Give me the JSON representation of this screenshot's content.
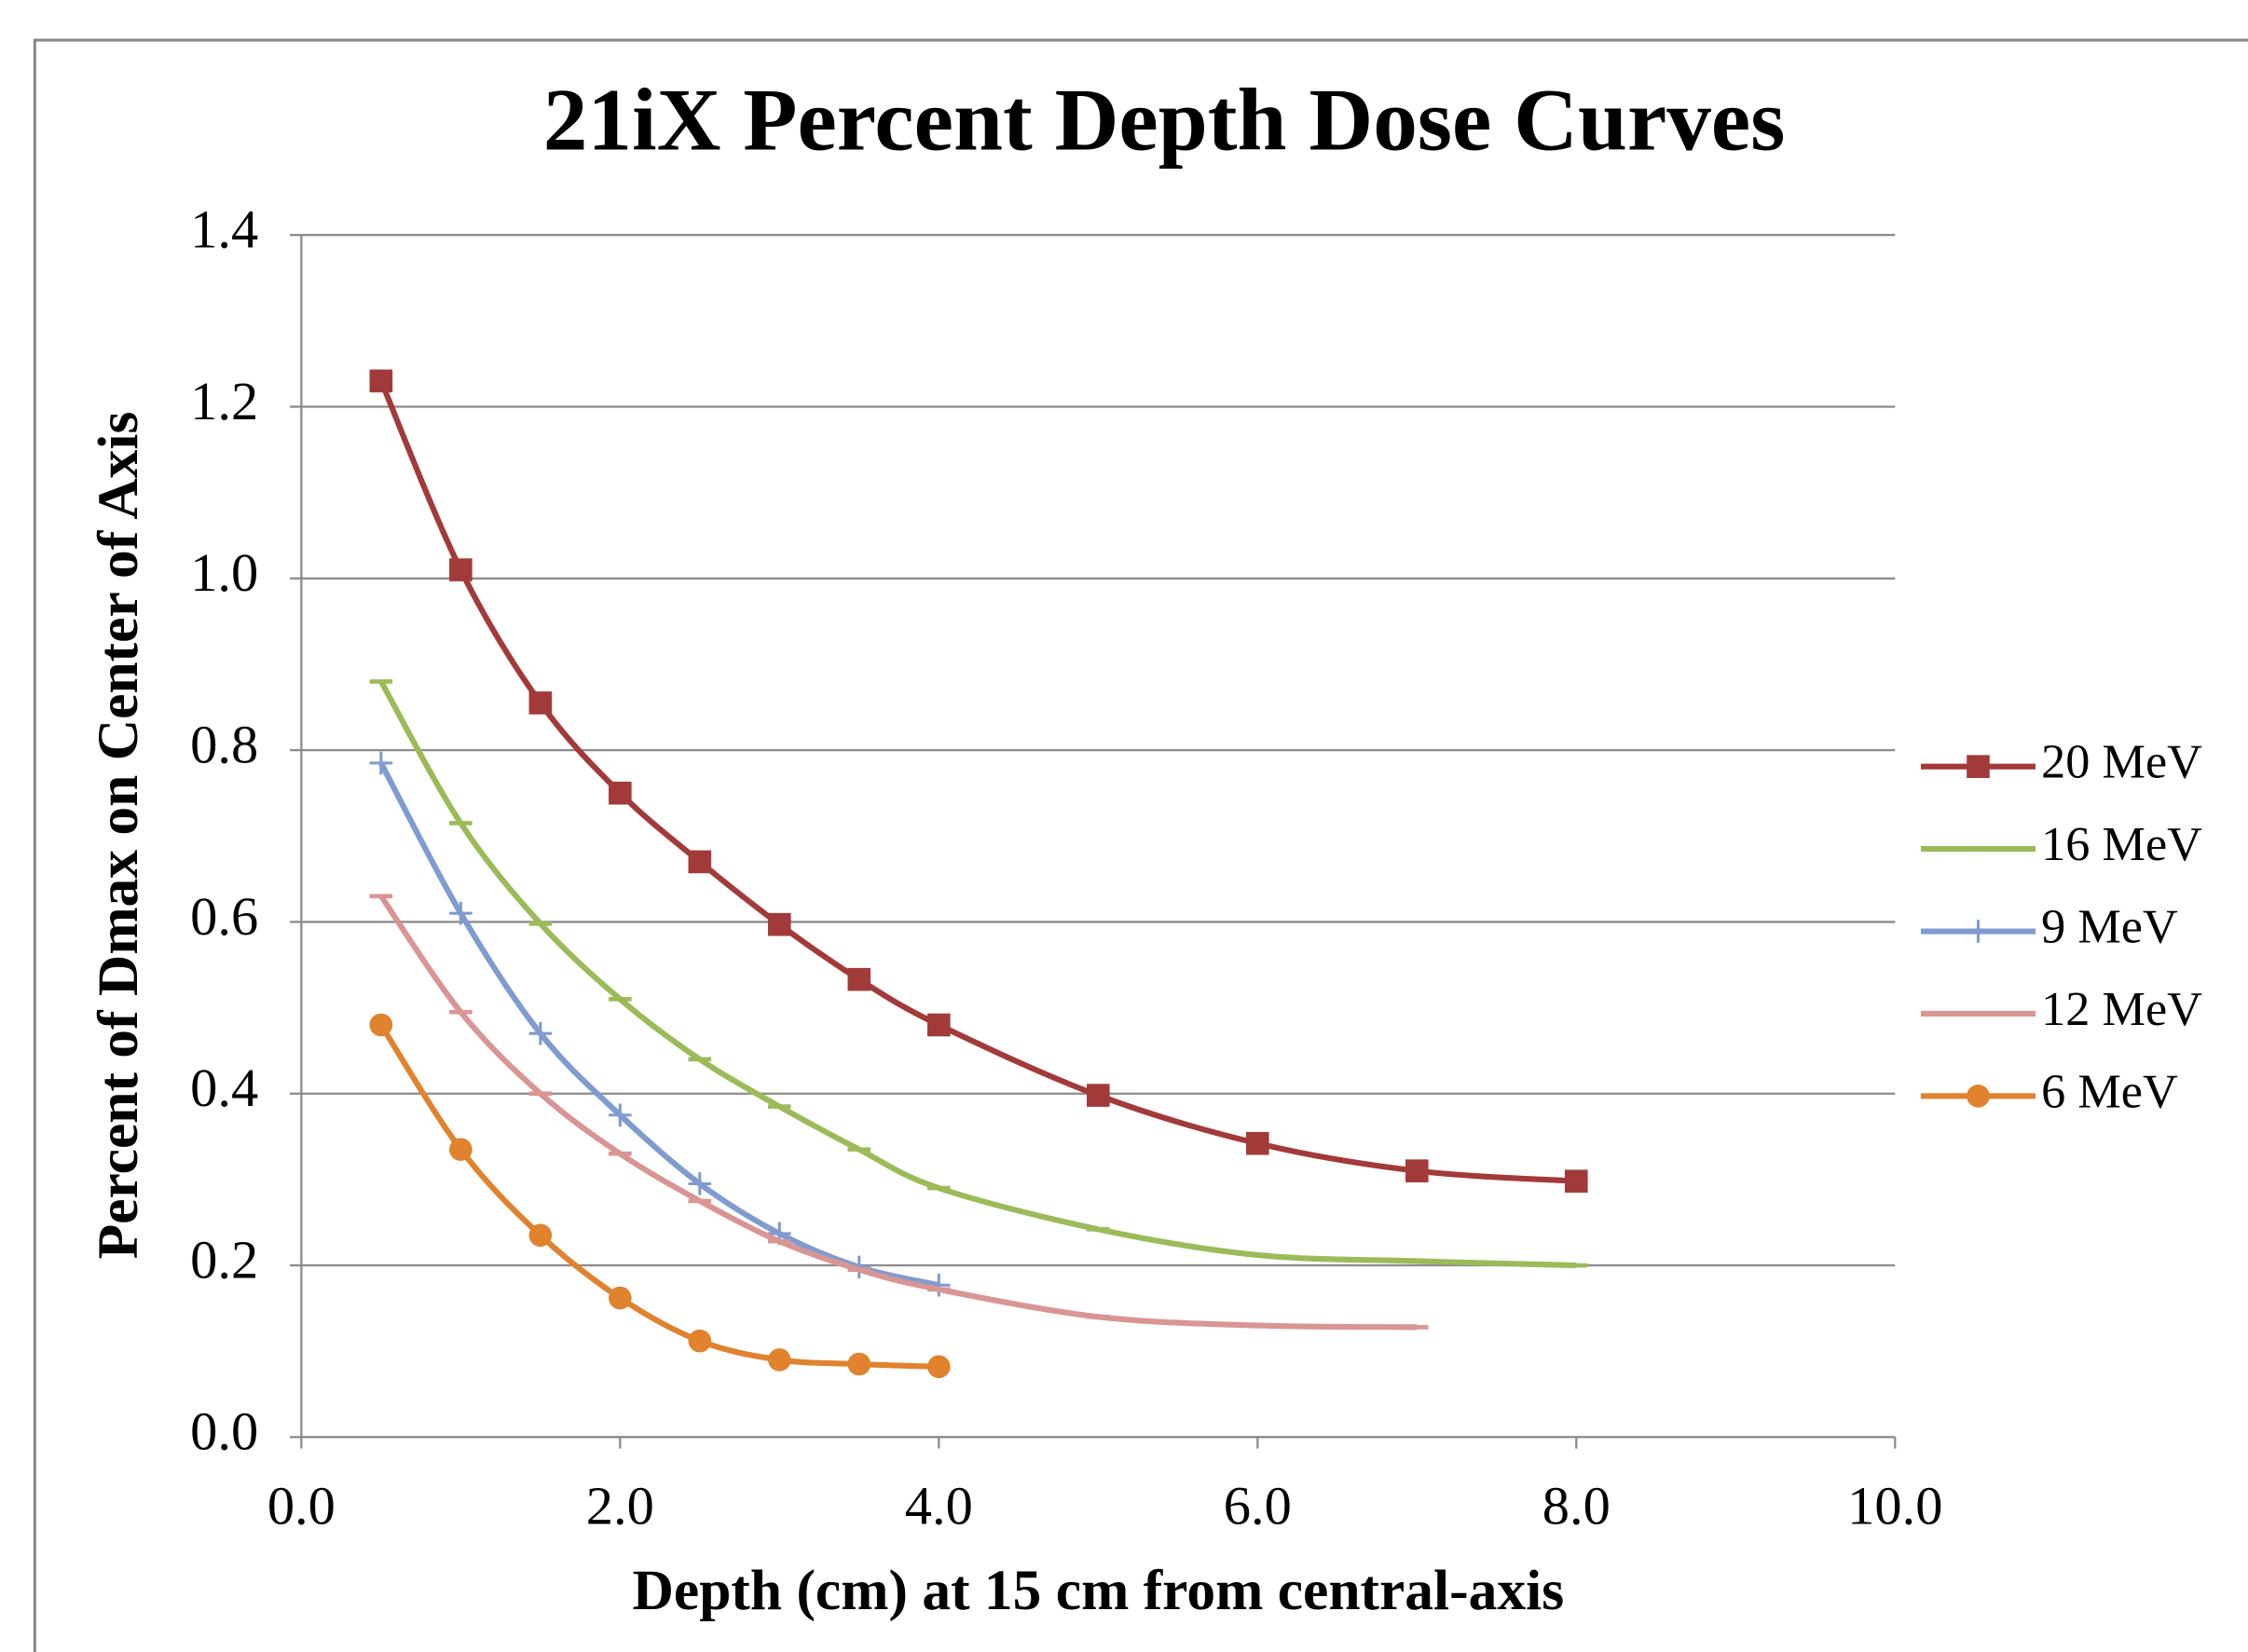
{
  "chart_data": {
    "type": "scatter",
    "title": "21iX Percent Depth Dose Curves",
    "x_label": "Depth (cm) at 15 cm from central-axis",
    "y_label": "Percent of Dmax on Center of Axis",
    "xlim": [
      0,
      10
    ],
    "ylim": [
      0,
      1.4
    ],
    "xticks": [
      {
        "value": 0,
        "label": "0.0"
      },
      {
        "value": 2,
        "label": "2.0"
      },
      {
        "value": 4,
        "label": "4.0"
      },
      {
        "value": 6,
        "label": "6.0"
      },
      {
        "value": 8,
        "label": "8.0"
      },
      {
        "value": 10,
        "label": "10.0"
      }
    ],
    "yticks": [
      {
        "value": 0,
        "label": "0.0"
      },
      {
        "value": 0.2,
        "label": "0.2"
      },
      {
        "value": 0.4,
        "label": "0.4"
      },
      {
        "value": 0.6,
        "label": "0.6"
      },
      {
        "value": 0.8,
        "label": "0.8"
      },
      {
        "value": 1,
        "label": "1.0"
      },
      {
        "value": 1.2,
        "label": "1.2"
      },
      {
        "value": 1.4,
        "label": "1.4"
      }
    ],
    "grid": true,
    "legend": "right",
    "series": [
      {
        "name": "20 MeV",
        "color": "#a33a3a",
        "marker": "square",
        "x": [
          0.5,
          1,
          1.5,
          2,
          2.5,
          3,
          3.5,
          4,
          5,
          6,
          7,
          8
        ],
        "values": [
          1.23,
          1.01,
          0.855,
          0.75,
          0.67,
          0.597,
          0.533,
          0.48,
          0.398,
          0.342,
          0.31,
          0.298
        ]
      },
      {
        "name": "16 MeV",
        "color": "#9bbb59",
        "marker": "dash",
        "x": [
          0.5,
          1,
          1.5,
          2,
          2.5,
          3,
          3.5,
          4,
          5,
          6,
          7,
          8
        ],
        "values": [
          0.88,
          0.715,
          0.598,
          0.51,
          0.44,
          0.385,
          0.335,
          0.29,
          0.242,
          0.212,
          0.205,
          0.2
        ]
      },
      {
        "name": "9 MeV",
        "color": "#7f9bd0",
        "marker": "plus",
        "x": [
          0.5,
          1,
          1.5,
          2,
          2.5,
          3,
          3.5,
          4
        ],
        "values": [
          0.785,
          0.61,
          0.47,
          0.375,
          0.295,
          0.237,
          0.198,
          0.177
        ]
      },
      {
        "name": "12 MeV",
        "color": "#d99594",
        "marker": "dash",
        "x": [
          0.5,
          1,
          1.5,
          2,
          2.5,
          3,
          3.5,
          4,
          5,
          6,
          7
        ],
        "values": [
          0.63,
          0.495,
          0.4,
          0.33,
          0.275,
          0.228,
          0.195,
          0.172,
          0.14,
          0.13,
          0.128
        ]
      },
      {
        "name": "6 MeV",
        "color": "#e0822e",
        "marker": "circle",
        "x": [
          0.5,
          1,
          1.5,
          2,
          2.5,
          3,
          3.5,
          4
        ],
        "values": [
          0.48,
          0.335,
          0.235,
          0.162,
          0.112,
          0.09,
          0.085,
          0.082
        ]
      }
    ]
  }
}
